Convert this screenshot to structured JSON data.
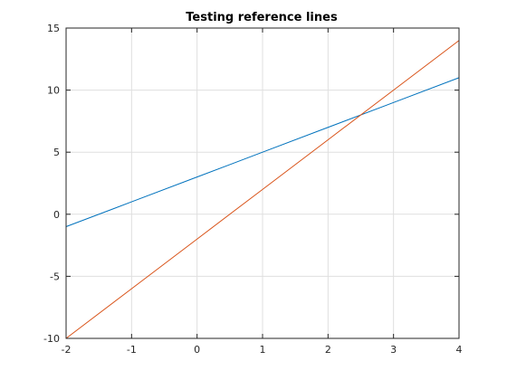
{
  "chart_data": {
    "type": "line",
    "title": "Testing reference lines",
    "xlabel": "",
    "ylabel": "",
    "xlim": [
      -2,
      4
    ],
    "ylim": [
      -10,
      15
    ],
    "xticks": [
      -2,
      -1,
      0,
      1,
      2,
      3,
      4
    ],
    "yticks": [
      -10,
      -5,
      0,
      5,
      10,
      15
    ],
    "grid": true,
    "series": [
      {
        "x": [
          -2,
          -1,
          0,
          1,
          2,
          3,
          4
        ],
        "y": [
          -1,
          1,
          3,
          5,
          7,
          9,
          11
        ],
        "color": "#0072bd"
      },
      {
        "x": [
          -2,
          -1,
          0,
          1,
          2,
          3,
          4
        ],
        "y": [
          -10,
          -6,
          -2,
          2,
          6,
          10,
          14
        ],
        "color": "#d95319"
      }
    ]
  }
}
